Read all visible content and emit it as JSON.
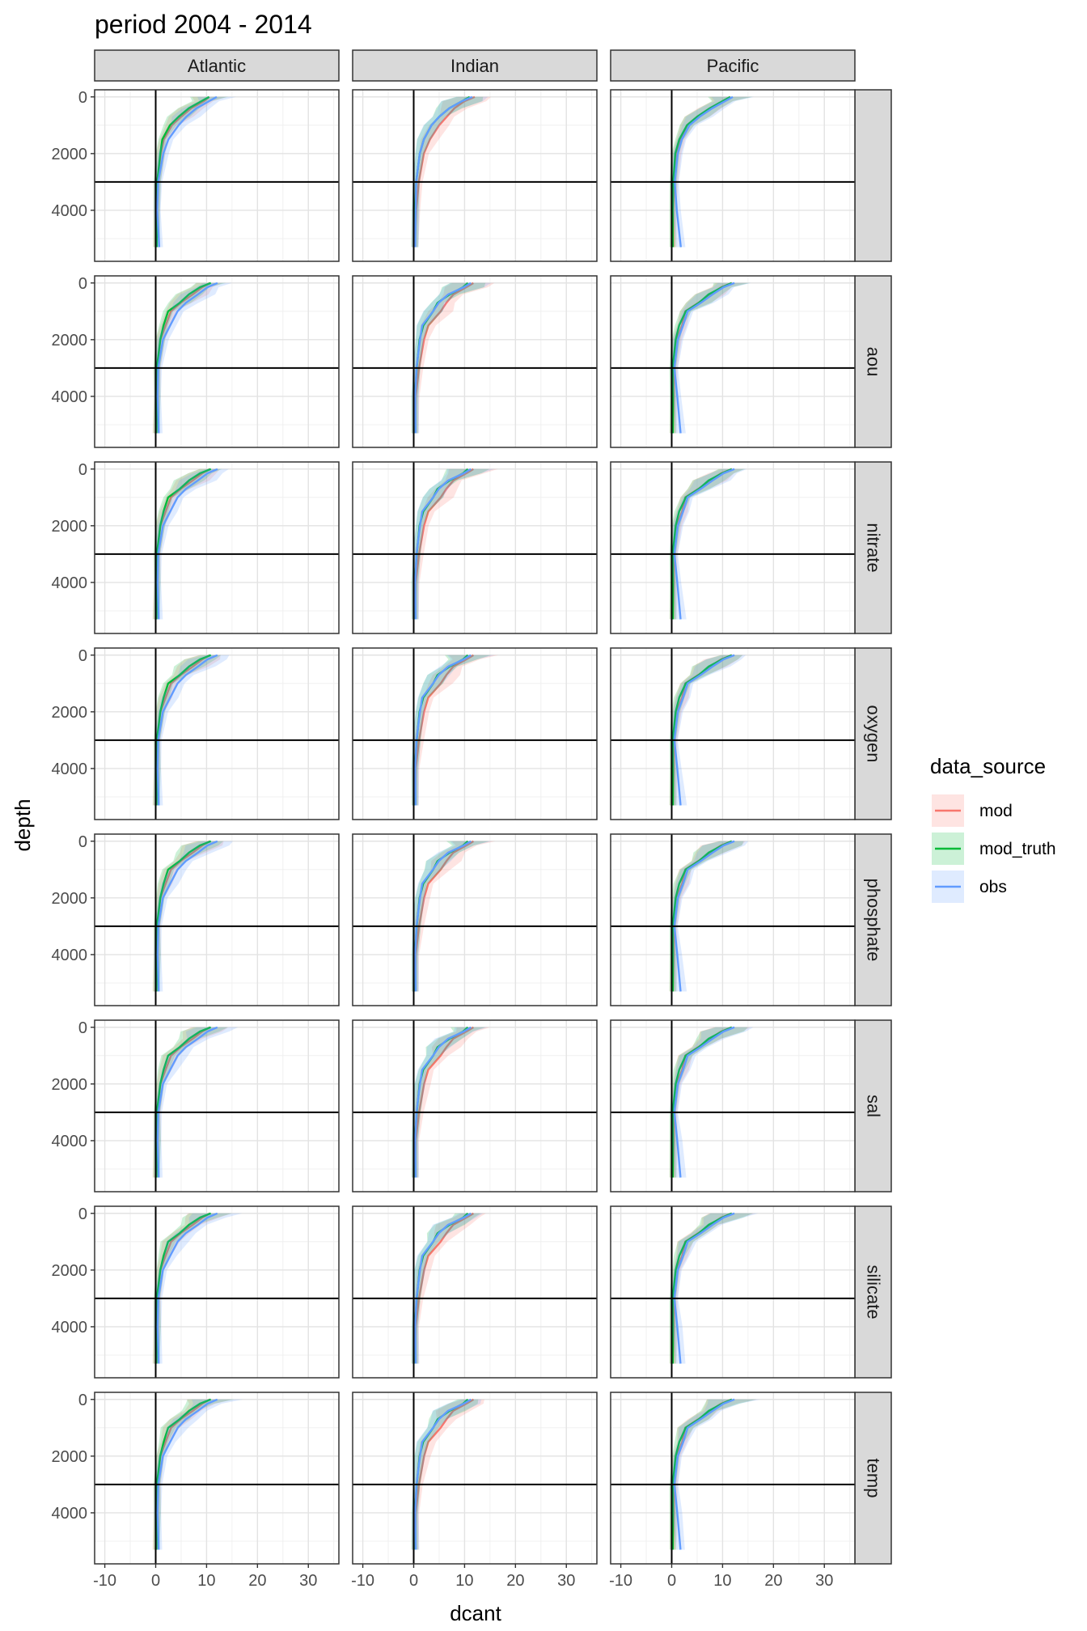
{
  "chart_data": {
    "type": "line",
    "title": "period 2004 - 2014",
    "xlabel": "dcant",
    "ylabel": "depth",
    "xlim": [
      -12,
      36
    ],
    "ylim": [
      5800,
      -250
    ],
    "x_ticks": [
      "-10",
      "0",
      "10",
      "20",
      "30"
    ],
    "x_tick_values": [
      -10,
      0,
      10,
      20,
      30
    ],
    "y_ticks": [
      "0",
      "2000",
      "4000"
    ],
    "y_tick_values": [
      0,
      2000,
      4000
    ],
    "y_reversed": true,
    "grid": true,
    "reference_lines": {
      "vertical_x": 0,
      "horizontal_depth": 3000
    },
    "legend": {
      "title": "data_source",
      "position": "right",
      "entries": [
        "mod",
        "mod_truth",
        "obs"
      ]
    },
    "colors": {
      "mod": "#F8766D",
      "mod_truth": "#00BA38",
      "obs": "#619CFF"
    },
    "columns": [
      "Atlantic",
      "Indian",
      "Pacific"
    ],
    "rows": [
      "",
      "aou",
      "nitrate",
      "oxygen",
      "phosphate",
      "sal",
      "silicate",
      "temp"
    ],
    "series": [
      {
        "name": "mod_truth",
        "depth": [
          0,
          150,
          400,
          700,
          1000,
          1500,
          2000,
          3000,
          4000,
          5300
        ],
        "profiles": {
          "Atlantic": [
            10.5,
            9,
            6.5,
            4.5,
            2.8,
            1.3,
            0.9,
            0.3,
            0.2,
            0.2
          ],
          "Indian": [
            11,
            9.5,
            7,
            5,
            3.5,
            2,
            1.2,
            0.5,
            0.3,
            0.2
          ],
          "Pacific": [
            11.5,
            10,
            7.5,
            5,
            3,
            1.5,
            0.7,
            0.3,
            0.2,
            0.2
          ]
        }
      },
      {
        "name": "mod",
        "depth": [
          0,
          150,
          400,
          700,
          1000,
          1500,
          2000,
          3000,
          4000,
          5300
        ],
        "profiles": {
          "Atlantic": [
            10.5,
            9.5,
            7,
            5,
            3.2,
            1.6,
            1,
            0.3,
            0.2,
            0.1
          ],
          "Indian": [
            12,
            10,
            8,
            6.5,
            5,
            3.2,
            2,
            1,
            0.5,
            0.2
          ],
          "Pacific": [
            11.5,
            10,
            7.5,
            5,
            3,
            1.8,
            1,
            0.5,
            0.3,
            0.3
          ]
        }
      },
      {
        "name": "obs",
        "depth": [
          0,
          150,
          400,
          700,
          1000,
          1500,
          2000,
          3000,
          4000,
          5300
        ],
        "profiles": {
          "Atlantic": [
            12,
            10.5,
            8,
            6,
            4.5,
            2.5,
            1.5,
            0.5,
            0.3,
            0.7
          ],
          "Indian": [
            11.5,
            9.5,
            7,
            5,
            3.5,
            2,
            1.2,
            0.5,
            0.4,
            0.3
          ],
          "Pacific": [
            12,
            10.5,
            8,
            5.5,
            3.5,
            2,
            1.2,
            0.6,
            1,
            1.8
          ]
        }
      }
    ]
  }
}
